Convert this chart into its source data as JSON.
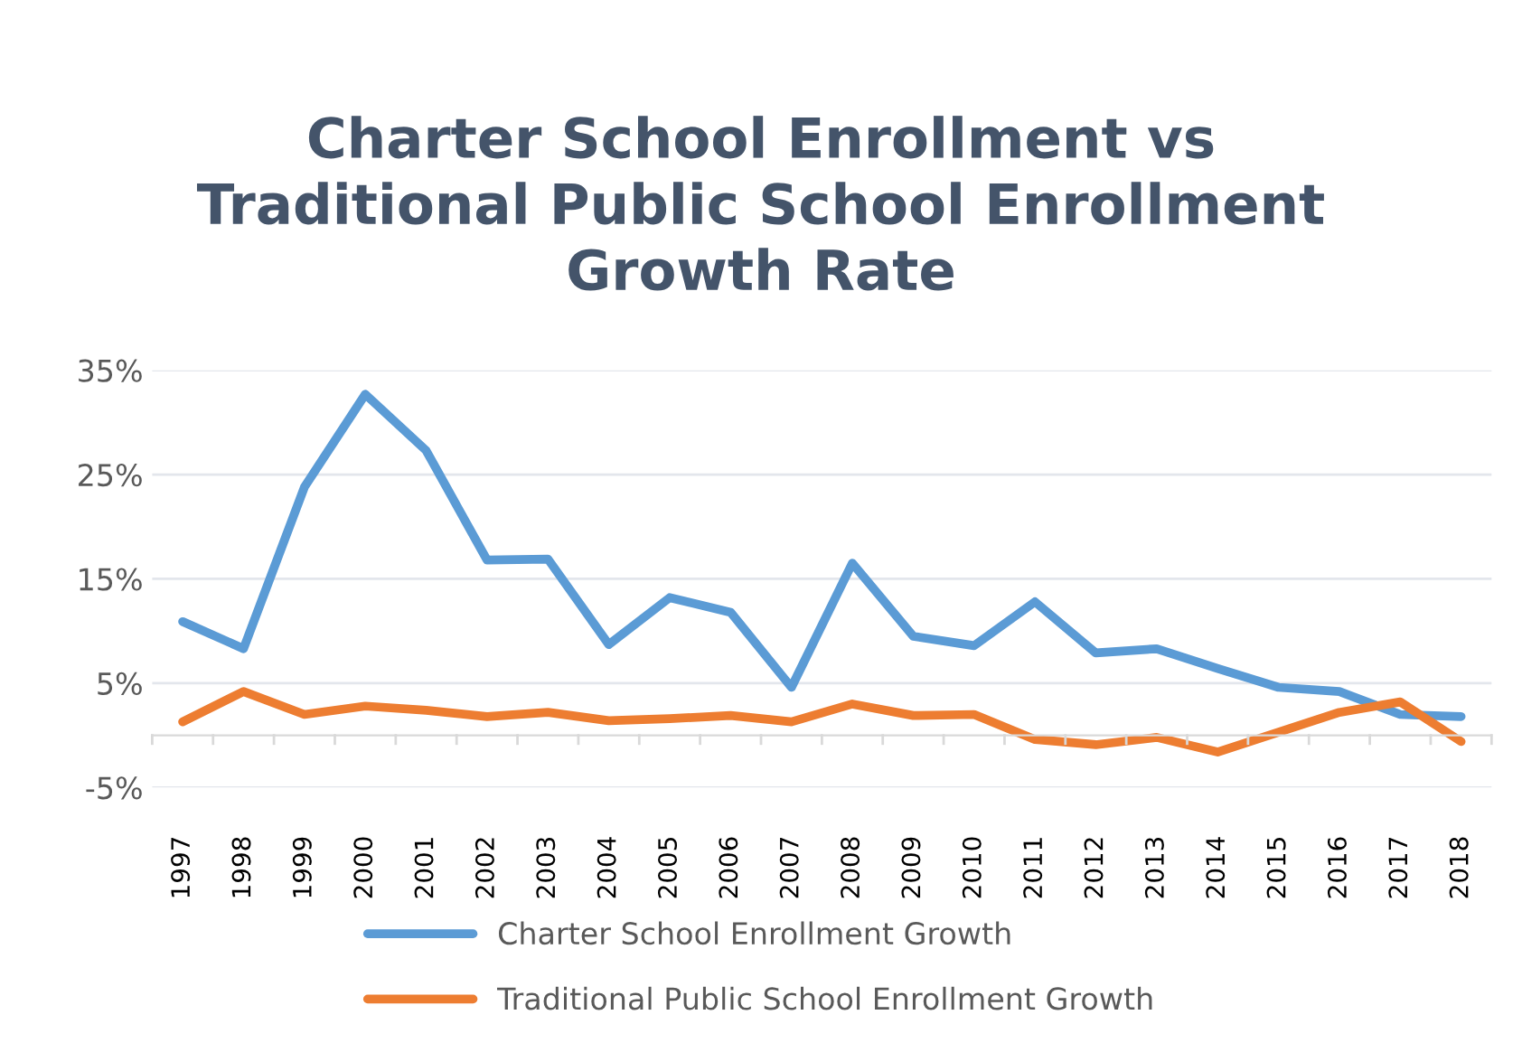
{
  "chart_data": {
    "type": "line",
    "title": "Charter School Enrollment vs\nTraditional Public School Enrollment\nGrowth Rate",
    "categories": [
      "1997",
      "1998",
      "1999",
      "2000",
      "2001",
      "2002",
      "2003",
      "2004",
      "2005",
      "2006",
      "2007",
      "2008",
      "2009",
      "2010",
      "2011",
      "2012",
      "2013",
      "2014",
      "2015",
      "2016",
      "2017",
      "2018"
    ],
    "series": [
      {
        "name": "Charter School Enrollment Growth",
        "color": "#5b9bd5",
        "values": [
          10.9,
          8.3,
          23.8,
          32.7,
          27.3,
          16.8,
          16.9,
          8.7,
          13.2,
          11.8,
          4.6,
          16.5,
          9.5,
          8.6,
          12.8,
          7.9,
          8.3,
          6.4,
          4.6,
          4.2,
          2.0,
          1.8
        ]
      },
      {
        "name": "Traditional Public School Enrollment Growth",
        "color": "#ed7d31",
        "values": [
          1.3,
          4.2,
          2.0,
          2.8,
          2.4,
          1.8,
          2.2,
          1.4,
          1.6,
          1.9,
          1.3,
          3.0,
          1.9,
          2.0,
          -0.4,
          -0.9,
          -0.2,
          -1.6,
          0.3,
          2.2,
          3.2,
          -0.6
        ]
      }
    ],
    "ylim": [
      -5,
      35
    ],
    "yticks": [
      {
        "value": -5,
        "label": "-5%"
      },
      {
        "value": 5,
        "label": "5%"
      },
      {
        "value": 15,
        "label": "15%"
      },
      {
        "value": 25,
        "label": "25%"
      },
      {
        "value": 35,
        "label": "35%"
      }
    ],
    "grid": "y",
    "legend": "bottom",
    "marker": "none",
    "line_style": "solid"
  }
}
